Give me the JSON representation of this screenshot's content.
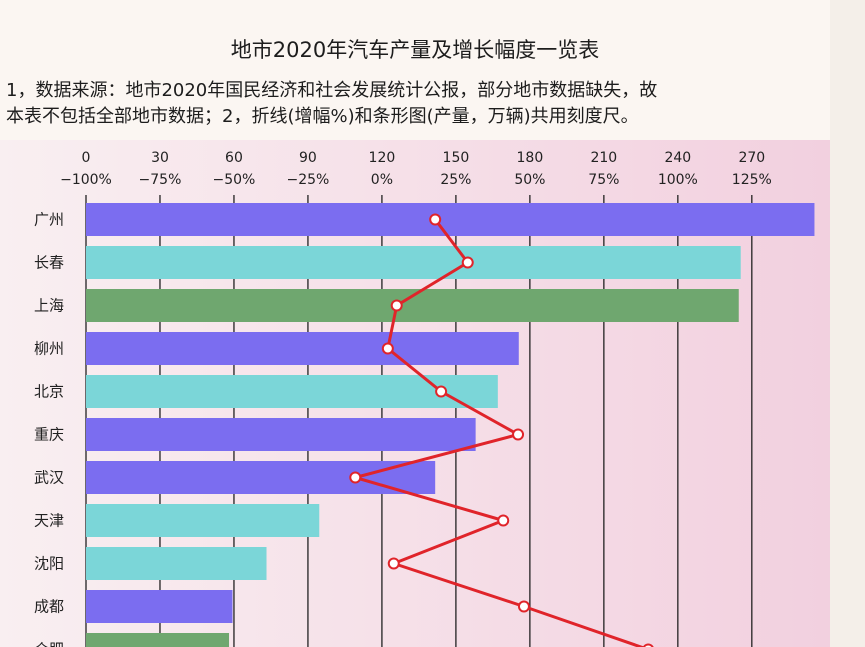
{
  "page": {
    "title": "地市2020年汽车产量及增长幅度一览表",
    "note_line1": "1，数据来源：地市2020年国民经济和社会发展统计公报，部分地市数据缺失，故",
    "note_line2": "本表不包括全部地市数据；2，折线(增幅%)和条形图(产量，万辆)共用刻度尺。"
  },
  "chart_data": {
    "type": "bar",
    "orientation": "horizontal",
    "title": "地市2020年汽车产量及增长幅度一览表",
    "axis_top_ticks": [
      "0",
      "30",
      "60",
      "90",
      "120",
      "150",
      "180",
      "210",
      "240",
      "270"
    ],
    "axis_bottom_ticks": [
      "−100%",
      "−75%",
      "−50%",
      "−25%",
      "0%",
      "25%",
      "50%",
      "75%",
      "100%",
      "125%"
    ],
    "xlim_production": [
      0,
      300
    ],
    "xlim_growth_percent": [
      -100,
      150
    ],
    "grid": true,
    "categories": [
      "广州",
      "长春",
      "上海",
      "柳州",
      "北京",
      "重庆",
      "武汉",
      "天津",
      "沈阳",
      "成都",
      "合肥"
    ],
    "series": [
      {
        "kind": "bar",
        "values": [
          295.4,
          265.5,
          264.7,
          175.5,
          167.0,
          158.0,
          141.6,
          94.6,
          73.2,
          59.4,
          58.0
        ],
        "colors": [
          "#7b6df0",
          "#7bd6d8",
          "#6fa76f",
          "#7b6df0",
          "#7bd6d8",
          "#7b6df0",
          "#7b6df0",
          "#7bd6d8",
          "#7bd6d8",
          "#7b6df0",
          "#6fa76f"
        ]
      },
      {
        "kind": "line",
        "line_color": "#e0242a",
        "values": [
          18.0,
          29.0,
          5.0,
          2.0,
          20.0,
          46.0,
          -9.0,
          41.0,
          4.0,
          48.0,
          90.0
        ]
      }
    ]
  }
}
